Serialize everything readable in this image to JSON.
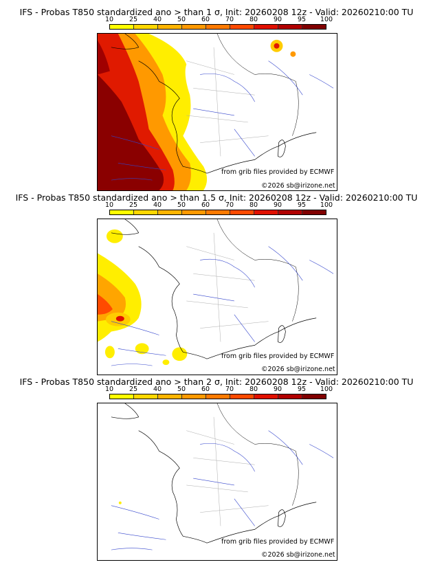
{
  "legend": {
    "ticks": [
      "10",
      "25",
      "40",
      "50",
      "60",
      "70",
      "80",
      "90",
      "95",
      "100"
    ],
    "colors": [
      "#ffff00",
      "#ffd700",
      "#ffb400",
      "#ff9900",
      "#ff7a00",
      "#ff4a00",
      "#e01000",
      "#b00000",
      "#800000"
    ]
  },
  "panels": [
    {
      "title": "IFS - Probas T850  standardized ano > than 1 σ, Init: 20260208 12z - Valid: 20260210:00 TU"
    },
    {
      "title": "IFS - Probas T850  standardized ano > than 1.5 σ, Init: 20260208 12z - Valid: 20260210:00 TU"
    },
    {
      "title": "IFS - Probas T850  standardized ano > than 2 σ, Init: 20260208 12z - Valid: 20260210:00 TU"
    }
  ],
  "credits": {
    "source": "from grib files provided by ECMWF",
    "copyright": "©2026 sb@irizone.net"
  }
}
